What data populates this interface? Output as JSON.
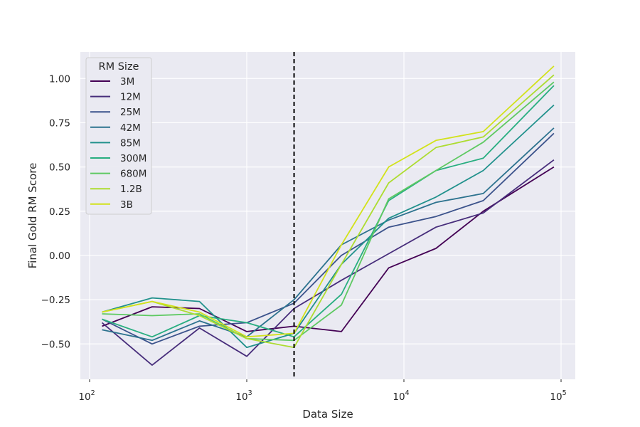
{
  "chart_data": {
    "type": "line",
    "xlabel": "Data Size",
    "ylabel": "Final Gold RM Score",
    "xscale": "log",
    "xlim": [
      100,
      120000
    ],
    "ylim": [
      -0.7,
      1.15
    ],
    "xticks": [
      {
        "value": 100,
        "base": "10",
        "exp": "2"
      },
      {
        "value": 1000,
        "base": "10",
        "exp": "3"
      },
      {
        "value": 10000,
        "base": "10",
        "exp": "4"
      },
      {
        "value": 100000,
        "base": "10",
        "exp": "5"
      }
    ],
    "yticks": [
      {
        "value": -0.5,
        "label": "−0.50"
      },
      {
        "value": -0.25,
        "label": "−0.25"
      },
      {
        "value": 0.0,
        "label": "0.00"
      },
      {
        "value": 0.25,
        "label": "0.25"
      },
      {
        "value": 0.5,
        "label": "0.50"
      },
      {
        "value": 0.75,
        "label": "0.75"
      },
      {
        "value": 1.0,
        "label": "1.00"
      }
    ],
    "grid": true,
    "background": "#eaeaf2",
    "vline": {
      "x": 2000,
      "style": "dashed",
      "color": "#000000"
    },
    "legend": {
      "title": "RM Size",
      "placement": "upper-left"
    },
    "x": [
      120,
      250,
      500,
      1000,
      2000,
      4000,
      8000,
      16000,
      32000,
      90000
    ],
    "series": [
      {
        "name": "3M",
        "color": "#440154",
        "values": [
          -0.4,
          -0.29,
          -0.3,
          -0.43,
          -0.4,
          -0.43,
          -0.07,
          0.04,
          0.25,
          0.5
        ]
      },
      {
        "name": "12M",
        "color": "#472d7b",
        "values": [
          -0.38,
          -0.62,
          -0.41,
          -0.57,
          -0.3,
          -0.14,
          0.01,
          0.16,
          0.24,
          0.54
        ]
      },
      {
        "name": "25M",
        "color": "#3b528b",
        "values": [
          -0.36,
          -0.5,
          -0.4,
          -0.38,
          -0.27,
          0.0,
          0.16,
          0.22,
          0.31,
          0.69
        ]
      },
      {
        "name": "42M",
        "color": "#2c728e",
        "values": [
          -0.42,
          -0.48,
          -0.37,
          -0.46,
          -0.25,
          0.06,
          0.2,
          0.3,
          0.35,
          0.72
        ]
      },
      {
        "name": "85M",
        "color": "#21918c",
        "values": [
          -0.32,
          -0.24,
          -0.26,
          -0.52,
          -0.44,
          -0.05,
          0.21,
          0.33,
          0.48,
          0.85
        ]
      },
      {
        "name": "300M",
        "color": "#28ae80",
        "values": [
          -0.36,
          -0.46,
          -0.34,
          -0.38,
          -0.46,
          -0.22,
          0.31,
          0.48,
          0.55,
          0.96
        ]
      },
      {
        "name": "680M",
        "color": "#5ec962",
        "values": [
          -0.33,
          -0.34,
          -0.33,
          -0.47,
          -0.48,
          -0.28,
          0.32,
          0.48,
          0.64,
          0.98
        ]
      },
      {
        "name": "1.2B",
        "color": "#addc30",
        "values": [
          -0.32,
          -0.26,
          -0.34,
          -0.47,
          -0.52,
          -0.05,
          0.41,
          0.61,
          0.67,
          1.02
        ]
      },
      {
        "name": "3B",
        "color": "#d2e21b",
        "values": [
          -0.32,
          -0.26,
          -0.32,
          -0.46,
          -0.44,
          0.06,
          0.5,
          0.65,
          0.7,
          1.07
        ]
      }
    ]
  }
}
